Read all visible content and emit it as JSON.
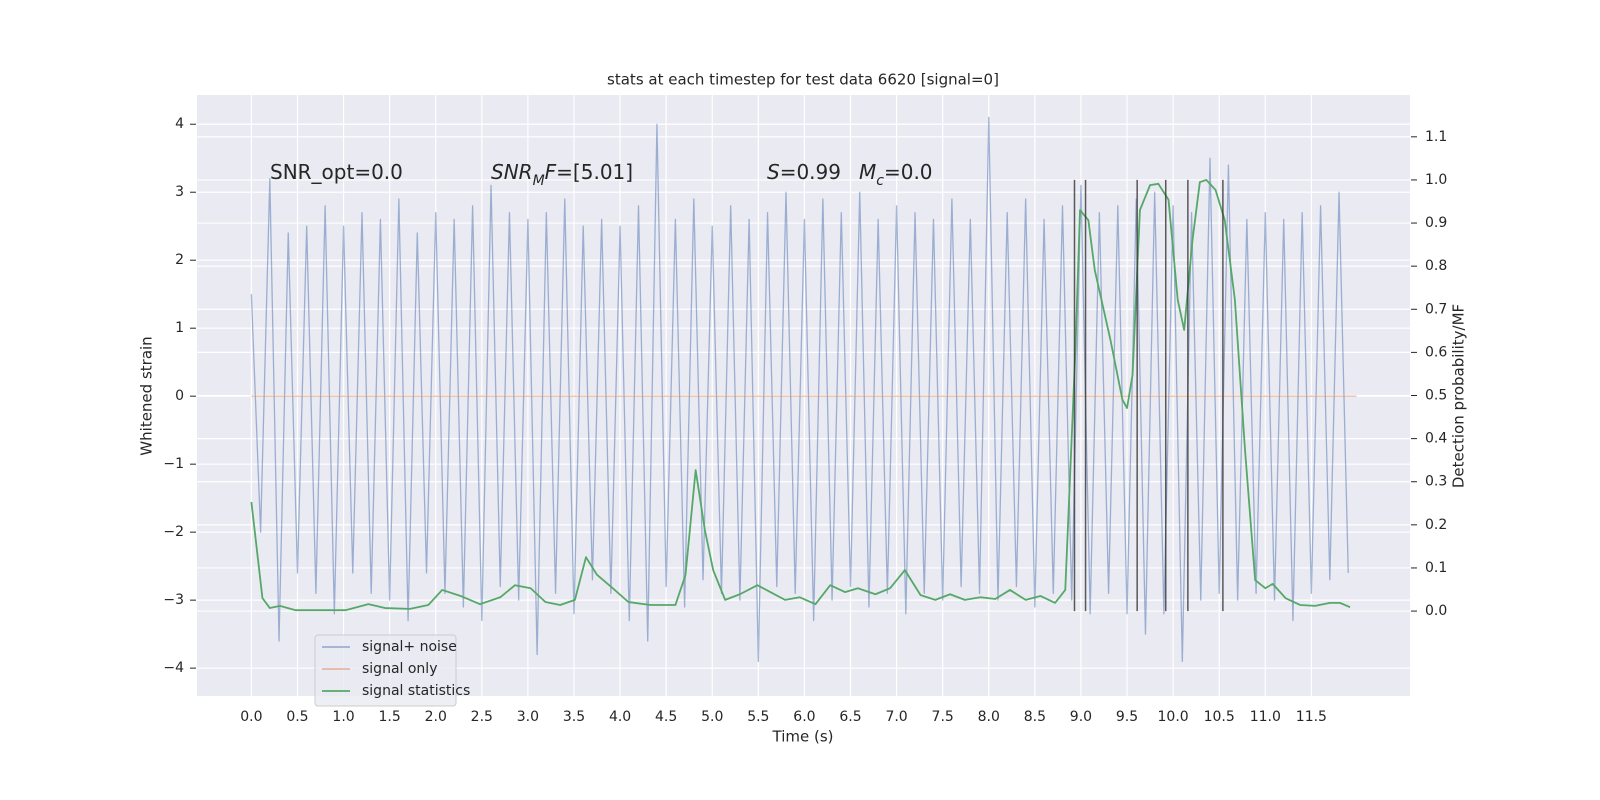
{
  "chart_data": {
    "type": "line",
    "title": "stats at each timestep for test data 6620 [signal=0]",
    "xlabel": "Time (s)",
    "ylabel": "Whitened strain",
    "y2label": "Detection probability/MF",
    "xlim": [
      -0.59,
      12.57
    ],
    "ylim": [
      -4.41,
      4.43
    ],
    "y2lim": [
      -0.197,
      1.197
    ],
    "grid": true,
    "legend": "lower left",
    "xticks": [
      {
        "value": 0,
        "label": "0.0"
      },
      0.5,
      {
        "value": 1,
        "label": "1.0"
      },
      1.5,
      {
        "value": 2,
        "label": "2.0"
      },
      2.5,
      {
        "value": 3,
        "label": "3.0"
      },
      3.5,
      {
        "value": 4,
        "label": "4.0"
      },
      4.5,
      {
        "value": 5,
        "label": "5.0"
      },
      5.5,
      {
        "value": 6,
        "label": "6.0"
      },
      6.5,
      {
        "value": 7,
        "label": "7.0"
      },
      7.5,
      {
        "value": 8,
        "label": "8.0"
      },
      8.5,
      {
        "value": 9,
        "label": "9.0"
      },
      9.5,
      {
        "value": 10,
        "label": "10.0"
      },
      10.5,
      {
        "value": 11,
        "label": "11.0"
      },
      11.5
    ],
    "yticks": [
      {
        "value": -4,
        "label": "−4"
      },
      {
        "value": -3,
        "label": "−3"
      },
      {
        "value": -2,
        "label": "−2"
      },
      {
        "value": -1,
        "label": "−1"
      },
      0,
      1,
      2,
      3,
      4
    ],
    "y2ticks": [
      {
        "value": 0,
        "label": "0.0"
      },
      0.1,
      0.2,
      0.3,
      0.4,
      0.5,
      0.6,
      0.7,
      0.8,
      0.9,
      {
        "value": 1,
        "label": "1.0"
      },
      1.1
    ],
    "annotations": [
      {
        "parts": [
          {
            "text": "SNR_opt=0.0"
          }
        ]
      },
      {
        "parts": [
          {
            "text": "SNR",
            "italic": true
          },
          {
            "text": "M",
            "italic": true,
            "sub": true
          },
          {
            "text": "F",
            "italic": true
          },
          {
            "text": "=[5.01]"
          }
        ]
      },
      {
        "parts": [
          {
            "text": "S",
            "italic": true
          },
          {
            "text": "=0.99"
          }
        ]
      },
      {
        "parts": [
          {
            "text": "M",
            "italic": true
          },
          {
            "text": "c",
            "italic": true,
            "sub": true
          },
          {
            "text": "=0.0"
          }
        ]
      }
    ],
    "series": [
      {
        "name": "signal+ noise",
        "color": "#4c72b0",
        "axis": "y",
        "x": [
          0.0,
          0.1,
          0.2,
          0.3,
          0.4,
          0.5,
          0.6,
          0.7,
          0.8,
          0.9,
          1.0,
          1.1,
          1.2,
          1.3,
          1.4,
          1.5,
          1.6,
          1.7,
          1.8,
          1.9,
          2.0,
          2.1,
          2.2,
          2.3,
          2.4,
          2.5,
          2.6,
          2.7,
          2.8,
          2.9,
          3.0,
          3.1,
          3.2,
          3.3,
          3.4,
          3.5,
          3.6,
          3.7,
          3.8,
          3.9,
          4.0,
          4.1,
          4.2,
          4.3,
          4.4,
          4.5,
          4.6,
          4.7,
          4.8,
          4.9,
          5.0,
          5.1,
          5.2,
          5.3,
          5.4,
          5.5,
          5.6,
          5.7,
          5.8,
          5.9,
          6.0,
          6.1,
          6.2,
          6.3,
          6.4,
          6.5,
          6.6,
          6.7,
          6.8,
          6.9,
          7.0,
          7.1,
          7.2,
          7.3,
          7.4,
          7.5,
          7.6,
          7.7,
          7.8,
          7.9,
          8.0,
          8.1,
          8.2,
          8.3,
          8.4,
          8.5,
          8.6,
          8.7,
          8.8,
          8.9,
          9.0,
          9.1,
          9.2,
          9.3,
          9.4,
          9.5,
          9.6,
          9.7,
          9.8,
          9.9,
          10.0,
          10.1,
          10.2,
          10.3,
          10.4,
          10.5,
          10.6,
          10.7,
          10.8,
          10.9,
          11.0,
          11.1,
          11.2,
          11.3,
          11.4,
          11.5,
          11.6,
          11.7,
          11.8,
          11.9
        ],
        "values": [
          1.5,
          -2.0,
          3.2,
          -3.6,
          2.4,
          -2.6,
          2.5,
          -2.9,
          2.8,
          -3.2,
          2.5,
          -2.6,
          2.7,
          -2.9,
          2.6,
          -3.0,
          2.9,
          -3.3,
          2.4,
          -2.6,
          2.7,
          -2.9,
          2.6,
          -3.1,
          2.8,
          -3.3,
          3.1,
          -2.8,
          2.7,
          -3.0,
          2.6,
          -3.8,
          2.7,
          -2.9,
          2.9,
          -3.2,
          2.5,
          -2.7,
          2.6,
          -2.9,
          2.5,
          -3.3,
          2.8,
          -3.6,
          4.0,
          -2.8,
          2.6,
          -3.1,
          2.9,
          -2.7,
          2.5,
          -2.9,
          2.8,
          -3.0,
          2.6,
          -3.9,
          2.7,
          -2.8,
          3.0,
          -2.9,
          2.6,
          -3.3,
          2.9,
          -3.0,
          2.7,
          -2.8,
          3.0,
          -3.1,
          2.6,
          -2.9,
          2.8,
          -3.2,
          2.7,
          -2.9,
          2.6,
          -3.0,
          2.9,
          -2.8,
          2.6,
          -2.9,
          4.1,
          -3.0,
          2.7,
          -2.8,
          2.9,
          -3.1,
          2.6,
          -2.9,
          2.8,
          -3.0,
          3.1,
          -3.2,
          2.7,
          -2.9,
          2.8,
          -3.2,
          2.9,
          -3.5,
          3.0,
          -3.2,
          2.8,
          -3.9,
          2.7,
          -3.0,
          3.5,
          -2.9,
          3.4,
          -3.0,
          2.6,
          -2.9,
          2.7,
          -3.0,
          2.6,
          -3.3,
          2.7,
          -2.9,
          2.8,
          -2.7,
          3.0,
          -2.6
        ]
      },
      {
        "name": "signal only",
        "color": "#dd8452",
        "axis": "y",
        "x": [
          0.0,
          11.99
        ],
        "values": [
          0,
          0
        ]
      },
      {
        "name": "signal statistics",
        "color": "#55a868",
        "axis": "y2",
        "x": [
          0.0,
          0.12,
          0.2,
          0.31,
          0.48,
          0.75,
          1.02,
          1.27,
          1.45,
          1.72,
          1.92,
          2.07,
          2.27,
          2.48,
          2.7,
          2.86,
          3.03,
          3.19,
          3.35,
          3.51,
          3.63,
          3.75,
          3.92,
          4.09,
          4.33,
          4.6,
          4.71,
          4.82,
          4.92,
          5.01,
          5.14,
          5.3,
          5.49,
          5.63,
          5.79,
          5.95,
          6.12,
          6.28,
          6.44,
          6.58,
          6.77,
          6.93,
          7.09,
          7.26,
          7.42,
          7.58,
          7.74,
          7.91,
          8.07,
          8.23,
          8.4,
          8.56,
          8.72,
          8.83,
          8.94,
          8.99,
          9.08,
          9.15,
          9.32,
          9.45,
          9.5,
          9.56,
          9.64,
          9.75,
          9.84,
          9.95,
          10.05,
          10.12,
          10.21,
          10.29,
          10.36,
          10.46,
          10.56,
          10.67,
          10.78,
          10.89,
          11.0,
          11.08,
          11.22,
          11.38,
          11.54,
          11.7,
          11.81,
          11.92
        ],
        "values": [
          0.253,
          0.03,
          0.007,
          0.012,
          0.002,
          0.002,
          0.002,
          0.016,
          0.007,
          0.005,
          0.014,
          0.049,
          0.035,
          0.016,
          0.032,
          0.06,
          0.053,
          0.021,
          0.014,
          0.026,
          0.125,
          0.084,
          0.053,
          0.021,
          0.014,
          0.014,
          0.084,
          0.327,
          0.188,
          0.095,
          0.026,
          0.039,
          0.06,
          0.044,
          0.026,
          0.032,
          0.016,
          0.06,
          0.044,
          0.053,
          0.039,
          0.053,
          0.095,
          0.037,
          0.026,
          0.039,
          0.026,
          0.032,
          0.028,
          0.049,
          0.026,
          0.035,
          0.019,
          0.049,
          0.606,
          0.93,
          0.907,
          0.791,
          0.629,
          0.49,
          0.471,
          0.548,
          0.93,
          0.988,
          0.991,
          0.954,
          0.722,
          0.652,
          0.86,
          0.995,
          1.0,
          0.977,
          0.907,
          0.722,
          0.374,
          0.072,
          0.053,
          0.063,
          0.03,
          0.014,
          0.012,
          0.019,
          0.019,
          0.009
        ]
      }
    ],
    "vlines": {
      "color": "#333333",
      "x": [
        8.93,
        9.05,
        9.61,
        9.92,
        10.16,
        10.54
      ],
      "y2": [
        0,
        1
      ]
    }
  }
}
